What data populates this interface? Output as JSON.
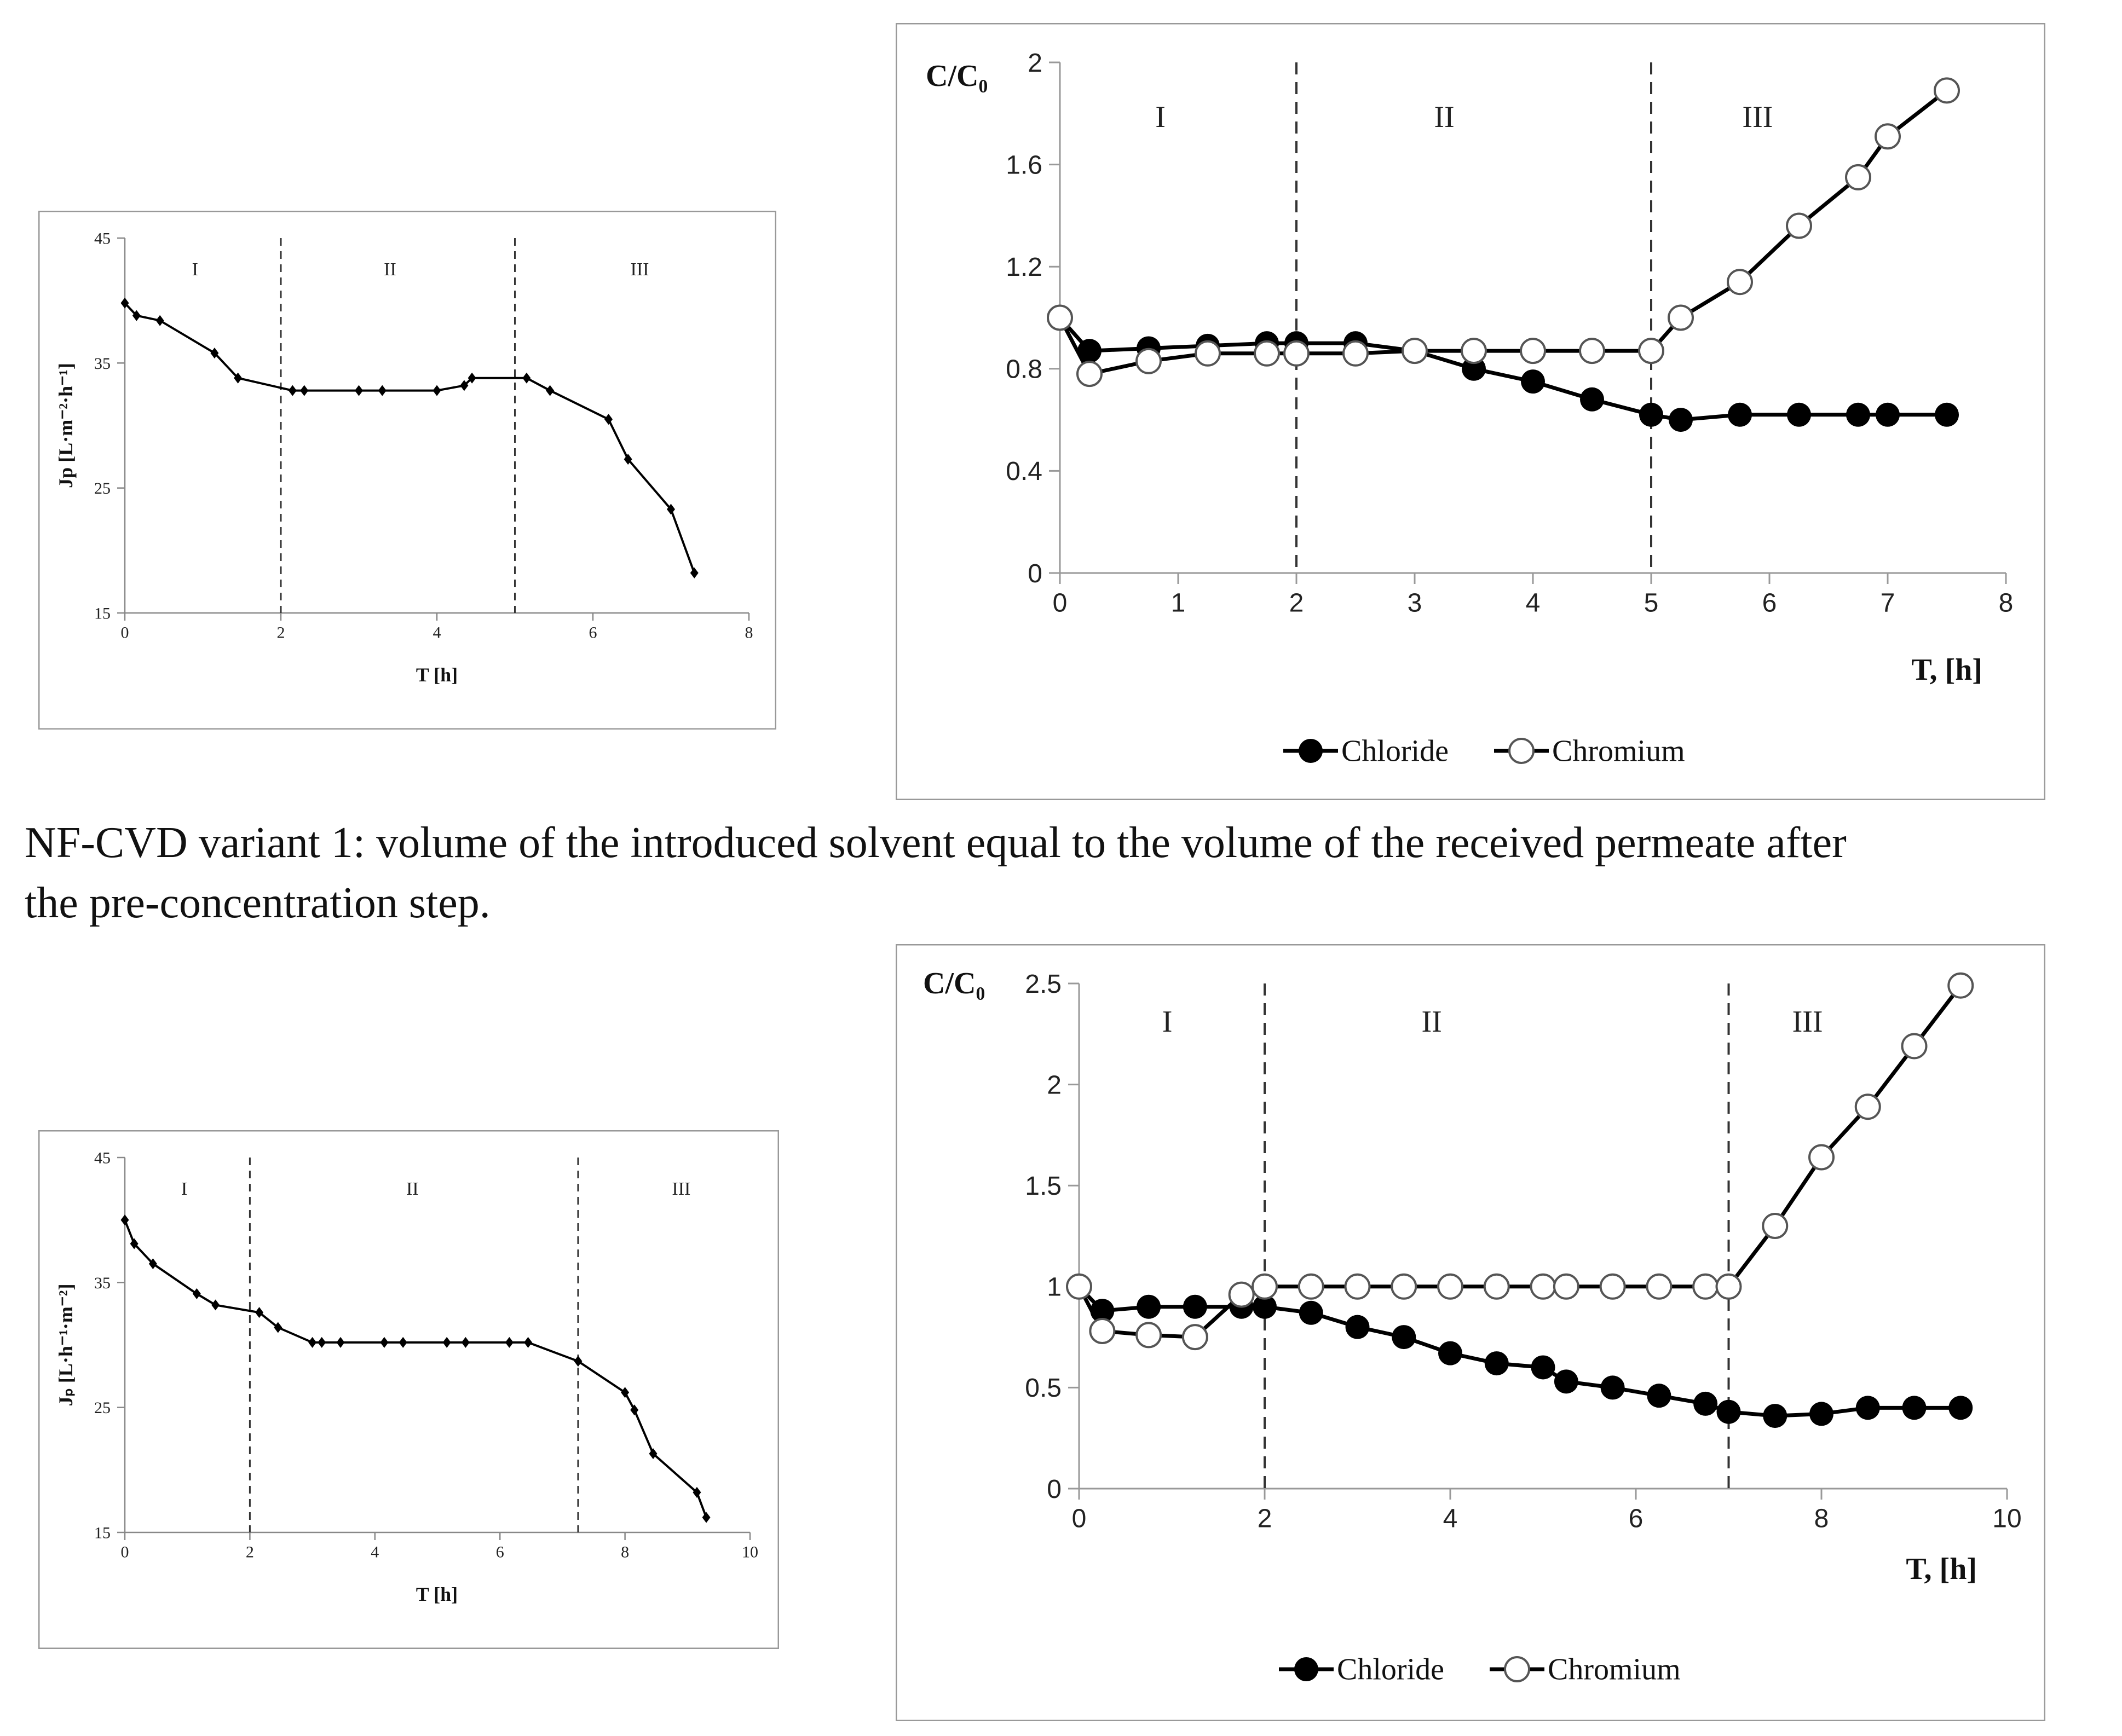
{
  "caption": {
    "line1": "NF-CVD variant 1: volume of the introduced solvent equal to the volume of the received permeate after",
    "line2": "the pre-concentration step."
  },
  "colors": {
    "line": "#000000",
    "frame": "#999999",
    "divider": "#333333"
  },
  "chart_data": [
    {
      "id": "flux1",
      "type": "line",
      "xlabel": "T [h]",
      "ylabel": "Jp [L·m⁻²·h⁻¹]",
      "xlim": [
        0,
        8
      ],
      "ylim": [
        15,
        45
      ],
      "xticks": [
        0,
        2,
        4,
        6,
        8
      ],
      "yticks": [
        15,
        25,
        35,
        45
      ],
      "regions": {
        "dividers": [
          2,
          5
        ],
        "labels": [
          {
            "text": "I",
            "x": 0.9
          },
          {
            "text": "II",
            "x": 3.4
          },
          {
            "text": "III",
            "x": 6.6
          }
        ]
      },
      "series": [
        {
          "name": "Jp",
          "marker": "diamond",
          "x": [
            0,
            0.15,
            0.45,
            1.15,
            1.45,
            2.15,
            2.3,
            3,
            3.3,
            4,
            4.35,
            4.45,
            5.15,
            5.45,
            6.2,
            6.45,
            7,
            7.3
          ],
          "y": [
            39.8,
            38.8,
            38.4,
            35.8,
            33.8,
            32.8,
            32.8,
            32.8,
            32.8,
            32.8,
            33.2,
            33.8,
            33.8,
            32.8,
            30.5,
            27.3,
            23.3,
            18.2
          ]
        }
      ]
    },
    {
      "id": "conc1",
      "type": "line",
      "ylabel": "C/C₀",
      "xlabel": "T, [h]",
      "xlim": [
        0,
        8
      ],
      "ylim": [
        0,
        2
      ],
      "xticks": [
        0,
        1,
        2,
        3,
        4,
        5,
        6,
        7,
        8
      ],
      "yticks": [
        0,
        0.4,
        0.8,
        1.2,
        1.6,
        2
      ],
      "ytick_labels": [
        "0",
        "0.4",
        "0.8",
        "1.2",
        "1.6",
        "2"
      ],
      "regions": {
        "dividers": [
          2,
          5
        ],
        "labels": [
          {
            "text": "I",
            "x": 0.85
          },
          {
            "text": "II",
            "x": 3.25
          },
          {
            "text": "III",
            "x": 5.9
          }
        ]
      },
      "legend": [
        "Chloride",
        "Chromium"
      ],
      "series": [
        {
          "name": "Chloride",
          "marker": "filled",
          "x": [
            0,
            0.25,
            0.75,
            1.25,
            1.75,
            2,
            2.5,
            3,
            3.5,
            4,
            4.5,
            5,
            5.25,
            5.75,
            6.25,
            6.75,
            7,
            7.5
          ],
          "y": [
            1.0,
            0.87,
            0.88,
            0.89,
            0.9,
            0.9,
            0.9,
            0.87,
            0.8,
            0.75,
            0.68,
            0.62,
            0.6,
            0.62,
            0.62,
            0.62,
            0.62,
            0.62
          ]
        },
        {
          "name": "Chromium",
          "marker": "open",
          "x": [
            0,
            0.25,
            0.75,
            1.25,
            1.75,
            2,
            2.5,
            3,
            3.5,
            4,
            4.5,
            5,
            5.25,
            5.75,
            6.25,
            6.75,
            7,
            7.5
          ],
          "y": [
            1.0,
            0.78,
            0.83,
            0.86,
            0.86,
            0.86,
            0.86,
            0.87,
            0.87,
            0.87,
            0.87,
            0.87,
            1.0,
            1.14,
            1.36,
            1.55,
            1.71,
            1.89
          ]
        }
      ]
    },
    {
      "id": "flux2",
      "type": "line",
      "xlabel": "T [h]",
      "ylabel": "Jₚ [L·h⁻¹·m⁻²]",
      "xlim": [
        0,
        10
      ],
      "ylim": [
        15,
        45
      ],
      "xticks": [
        0,
        2,
        4,
        6,
        8,
        10
      ],
      "yticks": [
        15,
        25,
        35,
        45
      ],
      "regions": {
        "dividers": [
          2,
          7.25
        ],
        "labels": [
          {
            "text": "I",
            "x": 0.95
          },
          {
            "text": "II",
            "x": 4.6
          },
          {
            "text": "III",
            "x": 8.9
          }
        ]
      },
      "series": [
        {
          "name": "Jp",
          "marker": "diamond",
          "x": [
            0,
            0.15,
            0.45,
            1.15,
            1.45,
            2.15,
            2.45,
            3,
            3.15,
            3.45,
            4.15,
            4.45,
            5.15,
            5.45,
            6.15,
            6.45,
            7.25,
            8,
            8.15,
            8.45,
            9.15,
            9.3
          ],
          "y": [
            40,
            38.1,
            36.5,
            34.1,
            33.2,
            32.6,
            31.4,
            30.2,
            30.2,
            30.2,
            30.2,
            30.2,
            30.2,
            30.2,
            30.2,
            30.2,
            28.7,
            26.2,
            24.8,
            21.3,
            18.2,
            16.2
          ]
        }
      ]
    },
    {
      "id": "conc2",
      "type": "line",
      "ylabel": "C/C₀",
      "xlabel": "T, [h]",
      "xlim": [
        0,
        10
      ],
      "ylim": [
        0,
        2.5
      ],
      "xticks": [
        0,
        2,
        4,
        6,
        8,
        10
      ],
      "yticks": [
        0,
        0.5,
        1,
        1.5,
        2,
        2.5
      ],
      "ytick_labels": [
        "0",
        "0.5",
        "1",
        "1.5",
        "2",
        "2.5"
      ],
      "regions": {
        "dividers": [
          2,
          7
        ],
        "labels": [
          {
            "text": "I",
            "x": 0.95
          },
          {
            "text": "II",
            "x": 3.8
          },
          {
            "text": "III",
            "x": 7.85
          }
        ]
      },
      "legend": [
        "Chloride",
        "Chromium"
      ],
      "series": [
        {
          "name": "Chloride",
          "marker": "filled",
          "x": [
            0,
            0.25,
            0.75,
            1.25,
            1.75,
            2,
            2.5,
            3,
            3.5,
            4,
            4.5,
            5,
            5.25,
            5.75,
            6.25,
            6.75,
            7,
            7.5,
            8,
            8.5,
            9,
            9.5
          ],
          "y": [
            1.0,
            0.88,
            0.9,
            0.9,
            0.9,
            0.9,
            0.87,
            0.8,
            0.75,
            0.67,
            0.62,
            0.6,
            0.53,
            0.5,
            0.46,
            0.42,
            0.38,
            0.36,
            0.37,
            0.4,
            0.4,
            0.4
          ]
        },
        {
          "name": "Chromium",
          "marker": "open",
          "x": [
            0,
            0.25,
            0.75,
            1.25,
            1.75,
            2,
            2.5,
            3,
            3.5,
            4,
            4.5,
            5,
            5.25,
            5.75,
            6.25,
            6.75,
            7,
            7.5,
            8,
            8.5,
            9,
            9.5
          ],
          "y": [
            1.0,
            0.78,
            0.76,
            0.75,
            0.96,
            1.0,
            1.0,
            1.0,
            1.0,
            1.0,
            1.0,
            1.0,
            1.0,
            1.0,
            1.0,
            1.0,
            1.0,
            1.3,
            1.64,
            1.89,
            2.19,
            2.49
          ]
        }
      ]
    }
  ]
}
